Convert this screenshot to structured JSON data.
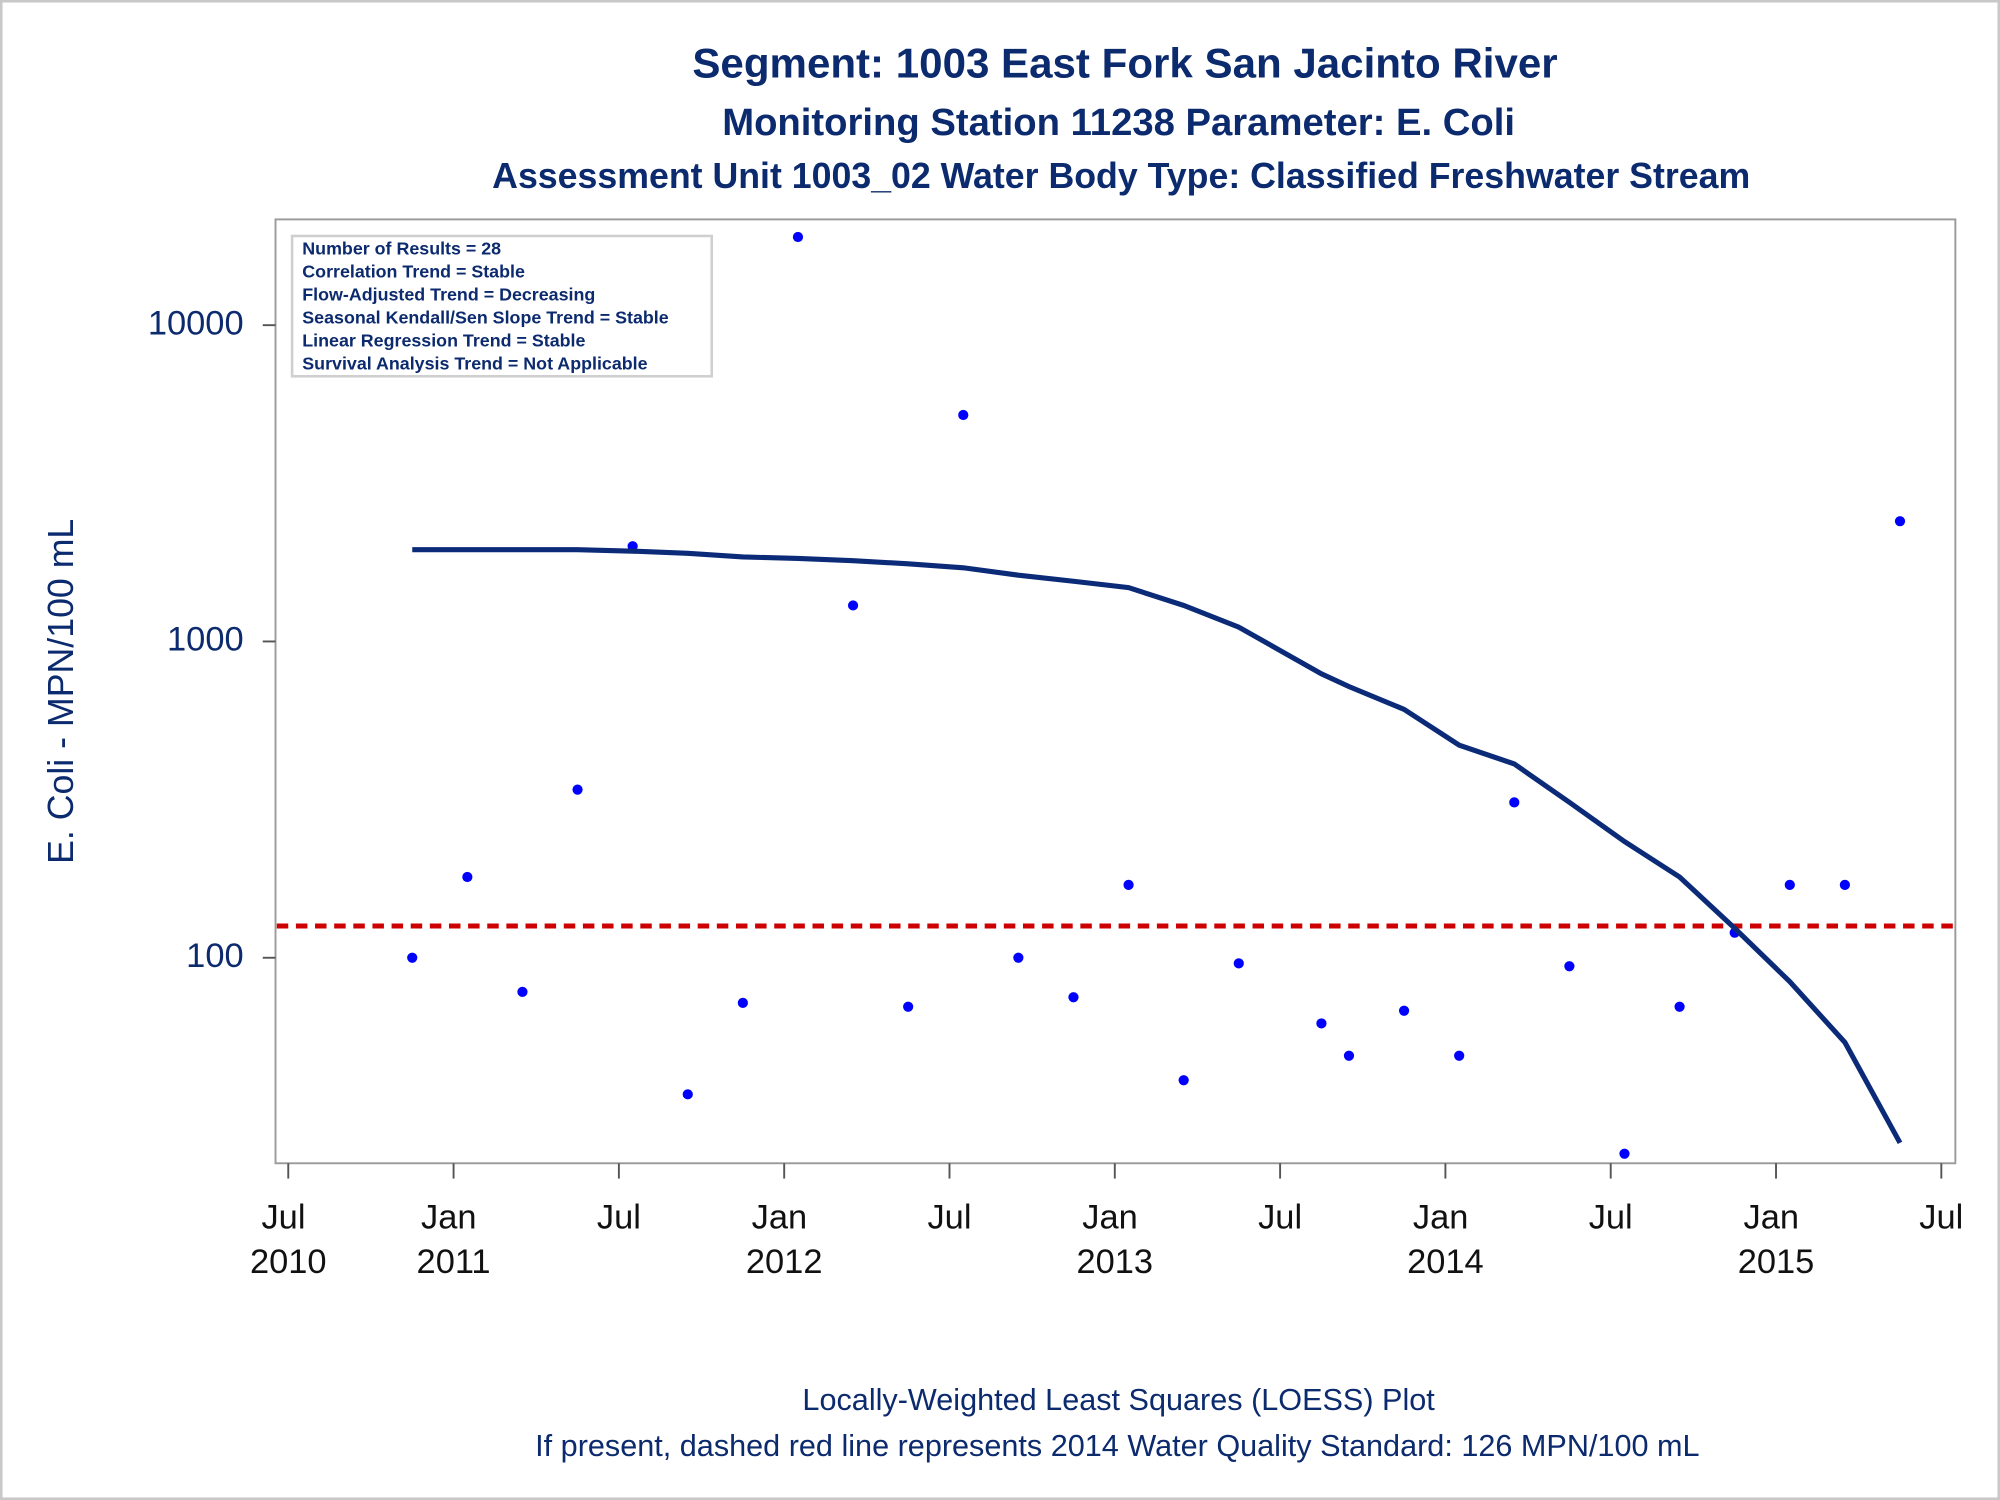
{
  "chart_data": {
    "type": "scatter",
    "title": "Segment: 1003  East Fork San Jacinto River",
    "subtitle": "Monitoring Station 11238 Parameter: E. Coli",
    "subtitle2": "Assessment Unit 1003_02   Water Body Type: Classified Freshwater Stream",
    "ylabel": "E. Coli - MPN/100 mL",
    "annotations": [
      "Number of Results = 28",
      "Correlation Trend = Stable",
      "Flow-Adjusted Trend = Decreasing",
      "Seasonal Kendall/Sen Slope Trend = Stable",
      "Linear Regression Trend = Stable",
      "Survival Analysis Trend = Not Applicable"
    ],
    "footer": [
      "Locally-Weighted Least Squares (LOESS) Plot",
      "If present, dashed red line represents 2014 Water Quality Standard: 126 MPN/100 mL"
    ],
    "x": [
      "2010-11",
      "2011-01",
      "2011-03",
      "2011-05",
      "2011-07",
      "2011-09",
      "2011-11",
      "2012-01",
      "2012-03",
      "2012-05",
      "2012-07",
      "2012-09",
      "2012-11",
      "2013-01",
      "2013-03",
      "2013-05",
      "2013-08",
      "2013-09",
      "2013-11",
      "2014-01",
      "2014-03",
      "2014-05",
      "2014-07",
      "2014-09",
      "2014-11",
      "2015-01",
      "2015-03",
      "2015-05"
    ],
    "series": [
      {
        "type": "scatter",
        "color": "#0000ff",
        "values": [
          100,
          180,
          78,
          340,
          2000,
          37,
          72,
          19000,
          1300,
          70,
          5200,
          100,
          75,
          170,
          41,
          96,
          62,
          49,
          68,
          49,
          310,
          94,
          24,
          70,
          120,
          170,
          170,
          2400
        ]
      },
      {
        "type": "line",
        "color": "#0b2a78",
        "values": [
          1950,
          1950,
          1950,
          1950,
          1930,
          1900,
          1850,
          1830,
          1800,
          1760,
          1710,
          1620,
          1550,
          1480,
          1300,
          1110,
          790,
          720,
          610,
          470,
          410,
          310,
          233,
          180,
          124,
          84,
          54,
          26
        ]
      }
    ],
    "reference_line": {
      "value": 126,
      "color": "#cc0000"
    },
    "log_y": true,
    "ylim": [
      22.4,
      21600
    ],
    "yticks": [
      100,
      1000,
      10000
    ],
    "xlim": [
      "2010-07",
      "2015-07"
    ],
    "xticks": [
      {
        "value": "2010-07",
        "label": "Jul 2010"
      },
      {
        "value": "2011-01",
        "label": "Jan 2011"
      },
      {
        "value": "2011-07",
        "label": "Jul"
      },
      {
        "value": "2012-01",
        "label": "Jan 2012"
      },
      {
        "value": "2012-07",
        "label": "Jul"
      },
      {
        "value": "2013-01",
        "label": "Jan 2013"
      },
      {
        "value": "2013-07",
        "label": "Jul"
      },
      {
        "value": "2014-01",
        "label": "Jan 2014"
      },
      {
        "value": "2014-07",
        "label": "Jul"
      },
      {
        "value": "2015-01",
        "label": "Jan 2015"
      },
      {
        "value": "2015-07",
        "label": "Jul"
      }
    ]
  }
}
